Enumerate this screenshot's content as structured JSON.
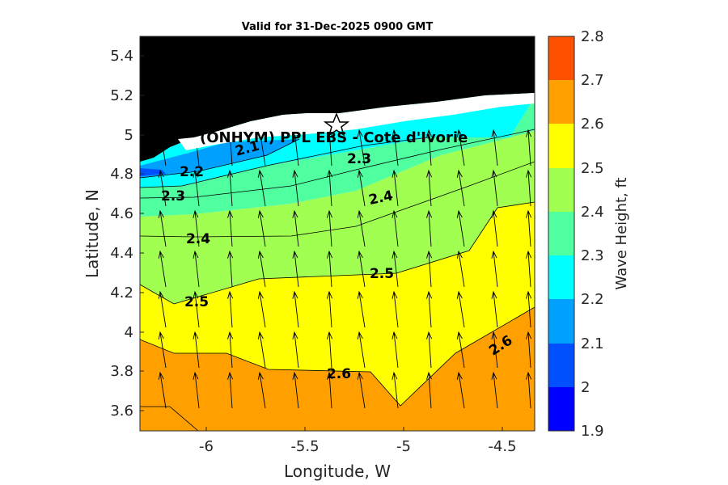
{
  "chart_data": {
    "type": "filled-contour",
    "title": "Valid for 31-Dec-2025 0900 GMT",
    "xlabel": "Longitude, W",
    "ylabel": "Latitude, N",
    "xlim": [
      -6.35,
      -4.35
    ],
    "ylim": [
      3.5,
      5.5
    ],
    "x_ticks": [
      -6,
      -5.5,
      -5,
      -4.5
    ],
    "x_tick_labels": [
      "-6",
      "-5.5",
      "-5",
      "-4.5"
    ],
    "y_ticks": [
      3.6,
      3.8,
      4.0,
      4.2,
      4.4,
      4.6,
      4.8,
      5.0,
      5.2,
      5.4
    ],
    "y_tick_labels": [
      "3.6",
      "3.8",
      "4",
      "4.2",
      "4.4",
      "4.6",
      "4.8",
      "5",
      "5.2",
      "5.4"
    ],
    "colorbar": {
      "label": "Wave Height, ft",
      "levels": [
        1.9,
        2.0,
        2.1,
        2.2,
        2.3,
        2.4,
        2.5,
        2.6,
        2.7,
        2.8
      ],
      "tick_labels": [
        "1.9",
        "2",
        "2.1",
        "2.2",
        "2.3",
        "2.4",
        "2.5",
        "2.6",
        "2.7",
        "2.8"
      ],
      "colors": [
        "#0000ff",
        "#0050ff",
        "#00a0ff",
        "#00ffff",
        "#50ffa0",
        "#a0ff50",
        "#ffff00",
        "#ffa000",
        "#ff5000"
      ]
    },
    "land_color": "#000000",
    "contour_labels": [
      {
        "text": "2.1",
        "lon": -5.8,
        "lat": 4.91,
        "angle": -15
      },
      {
        "text": "2.2",
        "lon": -6.07,
        "lat": 4.81,
        "angle": 0
      },
      {
        "text": "2.3",
        "lon": -6.17,
        "lat": 4.65,
        "angle": 0
      },
      {
        "text": "2.3",
        "lon": -5.22,
        "lat": 4.87,
        "angle": 0
      },
      {
        "text": "2.4",
        "lon": -6.08,
        "lat": 4.46,
        "angle": 0
      },
      {
        "text": "2.4",
        "lon": -5.11,
        "lat": 4.65,
        "angle": -12
      },
      {
        "text": "2.5",
        "lon": -6.1,
        "lat": 4.14,
        "angle": 0
      },
      {
        "text": "2.5",
        "lon": -5.11,
        "lat": 4.29,
        "angle": 0
      },
      {
        "text": "2.6",
        "lon": -5.35,
        "lat": 3.79,
        "angle": 0
      },
      {
        "text": "2.6",
        "lon": -4.53,
        "lat": 3.93,
        "angle": -33
      }
    ],
    "site_marker": {
      "lon": -5.35,
      "lat": 5.04,
      "symbol": "star"
    },
    "site_label": "(ONHYM) PPL EBS  - Cote d'Ivorie",
    "wave_direction": "arrows pointing roughly north (onshore)"
  }
}
